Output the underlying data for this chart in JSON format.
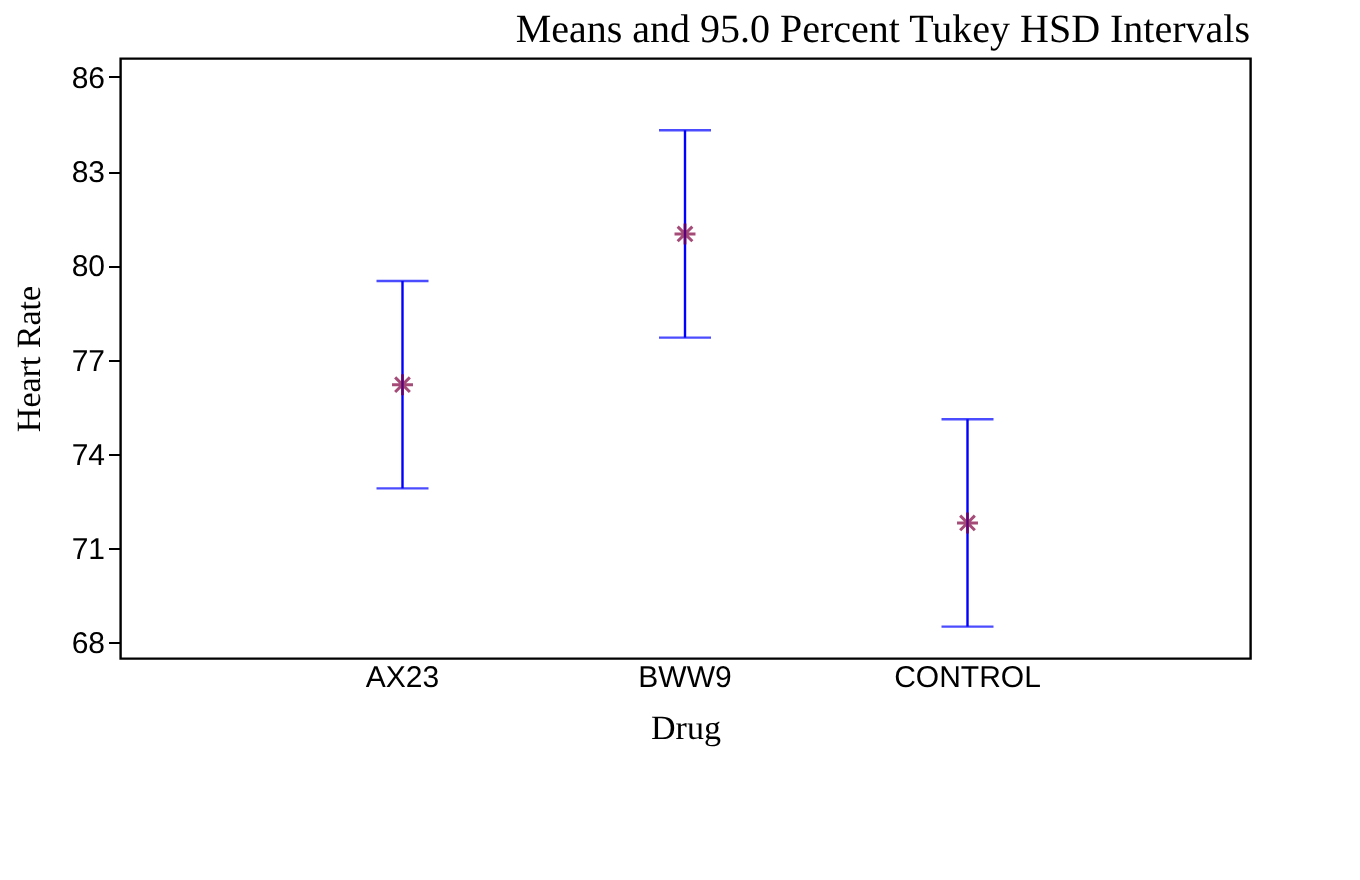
{
  "chart_data": {
    "type": "scatter",
    "title": "Means and 95.0 Percent Tukey HSD Intervals",
    "xlabel": "Drug",
    "ylabel": "Heart Rate",
    "categories": [
      "AX23",
      "BWW9",
      "CONTROL"
    ],
    "series": [
      {
        "color": "#800040",
        "values": [
          76.2,
          81.0,
          71.8
        ],
        "errors": [
          3.3,
          3.3,
          3.3
        ]
      }
    ],
    "ylim": [
      67.5,
      86.6
    ],
    "yticks": [
      68,
      71,
      74,
      77,
      80,
      83,
      86
    ],
    "marker": "cross"
  }
}
